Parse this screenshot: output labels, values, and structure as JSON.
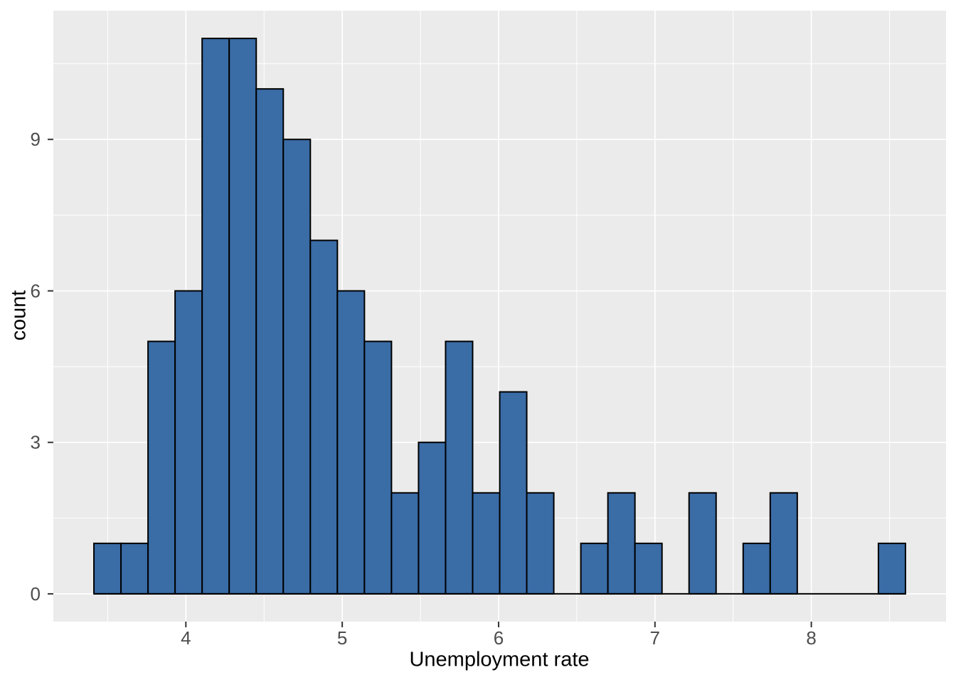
{
  "chart_data": {
    "type": "bar",
    "subtype": "histogram",
    "title": "",
    "xlabel": "Unemployment rate",
    "ylabel": "count",
    "x_ticks": [
      4,
      5,
      6,
      7,
      8
    ],
    "y_ticks": [
      0,
      3,
      6,
      9
    ],
    "x_minor_ticks": [
      3.5,
      4.5,
      5.5,
      6.5,
      7.5,
      8.5
    ],
    "y_minor_ticks": [
      1.5,
      4.5,
      7.5,
      10.5
    ],
    "xlim": [
      3.1525,
      8.8615
    ],
    "ylim": [
      -0.55,
      11.55
    ],
    "bins": {
      "start": 3.412,
      "width": 0.173,
      "counts": [
        1,
        1,
        5,
        6,
        11,
        11,
        10,
        9,
        7,
        6,
        5,
        2,
        3,
        5,
        2,
        4,
        2,
        0,
        1,
        2,
        1,
        0,
        2,
        0,
        1,
        2,
        0,
        0,
        0,
        1
      ]
    },
    "n_total": 100,
    "grid": true,
    "legend": false,
    "colors": {
      "bar_fill": "#3A6CA6",
      "bar_stroke": "#000000",
      "panel_bg": "#EBEBEB",
      "grid_major": "#FFFFFF",
      "grid_minor": "#FFFFFF",
      "tick_mark": "#333333",
      "tick_label": "#4D4D4D",
      "axis_title": "#000000",
      "figure_bg": "#FFFFFF"
    }
  }
}
